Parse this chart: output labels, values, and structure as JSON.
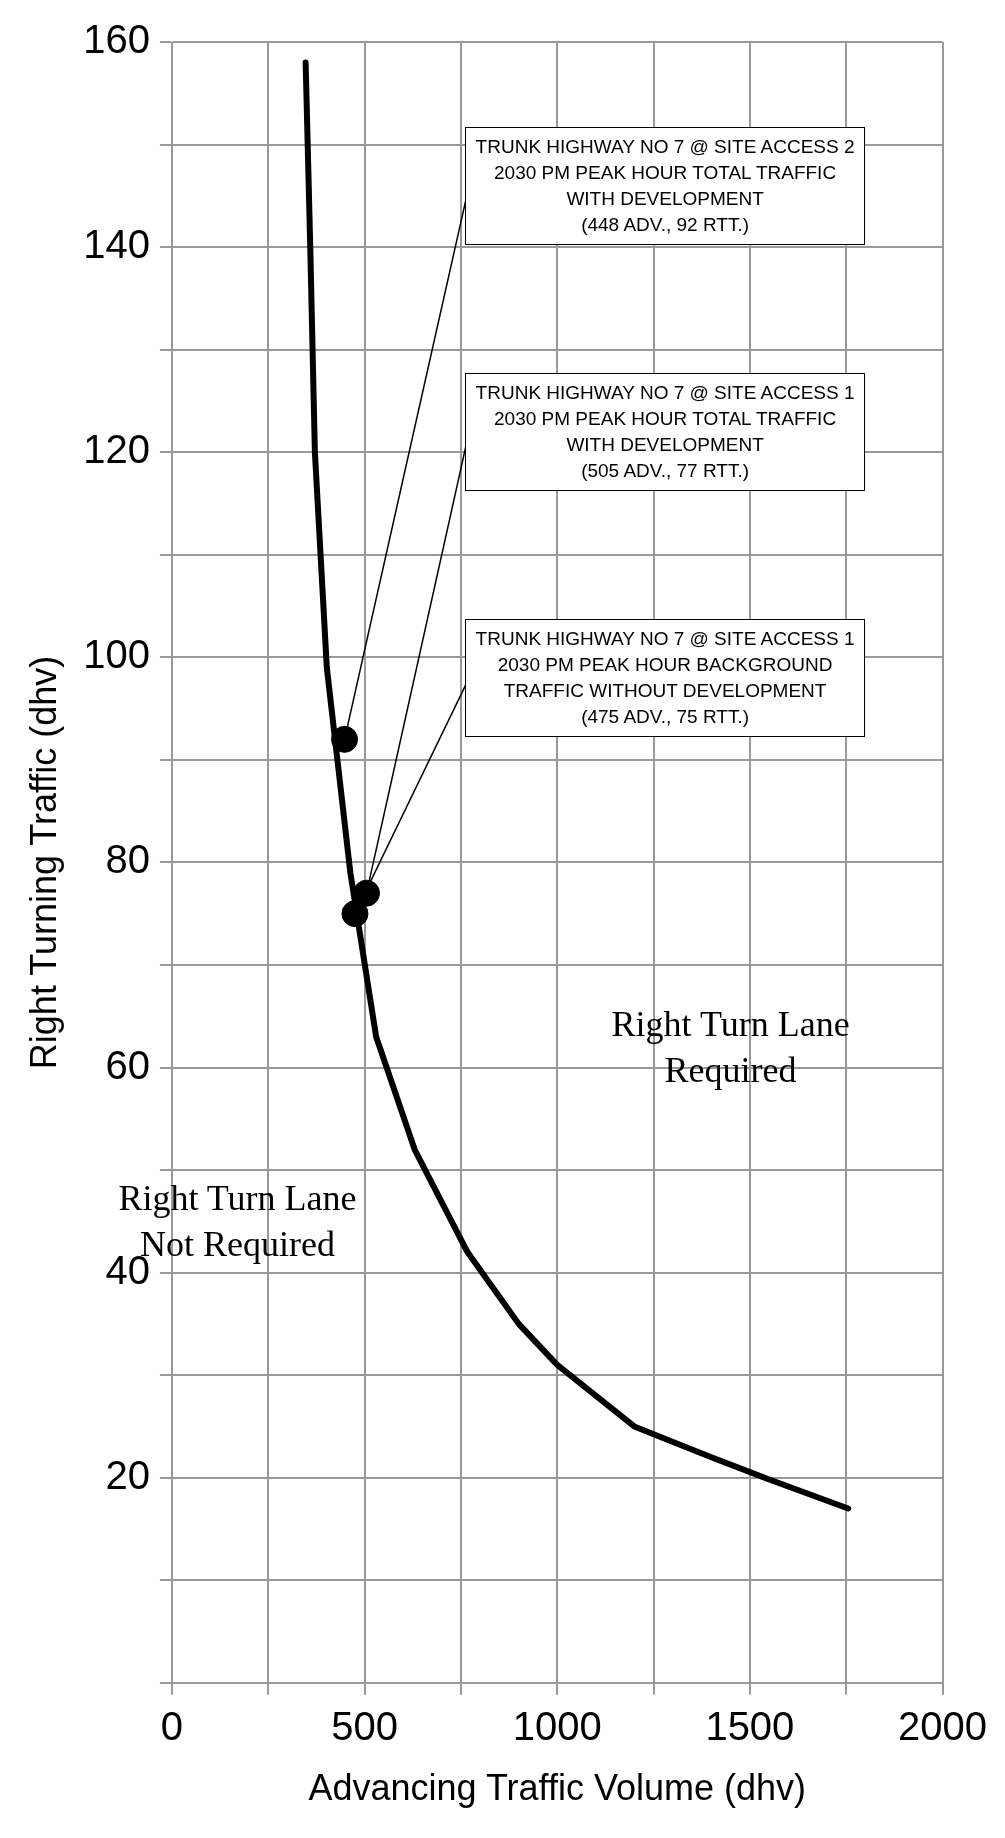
{
  "chart_data": {
    "type": "line",
    "xlabel": "Advancing Traffic Volume (dhv)",
    "ylabel": "Right Turning Traffic (dhv)",
    "xlim": [
      0,
      2000
    ],
    "ylim": [
      0,
      160
    ],
    "xticks": [
      0,
      {
        "value": 250,
        "label": null
      },
      500,
      {
        "value": 750,
        "label": null
      },
      1000,
      {
        "value": 1250,
        "label": null
      },
      1500,
      {
        "value": 1750,
        "label": null
      },
      2000
    ],
    "yticks": [
      {
        "value": 0,
        "label": null
      },
      {
        "value": 10,
        "label": null
      },
      20,
      {
        "value": 30,
        "label": null
      },
      40,
      {
        "value": 50,
        "label": null
      },
      60,
      {
        "value": 70,
        "label": null
      },
      80,
      {
        "value": 90,
        "label": null
      },
      100,
      {
        "value": 110,
        "label": null
      },
      120,
      {
        "value": 130,
        "label": null
      },
      140,
      {
        "value": 150,
        "label": null
      },
      160
    ],
    "grid": true,
    "series": [
      {
        "type": "line",
        "color": "#000000",
        "marker": "none",
        "line_style": "solid",
        "x": [
          347,
          359,
          371,
          402,
          463,
          530,
          630,
          767,
          900,
          1000,
          1200,
          1400,
          1538,
          1755
        ],
        "values": [
          158,
          140,
          120,
          99,
          79,
          63,
          52,
          42,
          35,
          31,
          25,
          22,
          20,
          17
        ]
      },
      {
        "type": "scatter",
        "color": "#000000",
        "marker": "circle",
        "x": [
          448,
          505,
          475
        ],
        "values": [
          92,
          77,
          75
        ]
      }
    ],
    "annotations": [
      {
        "text": "TRUNK HIGHWAY NO 7 @ SITE ACCESS 2\n2030 PM PEAK HOUR TOTAL TRAFFIC\nWITH DEVELOPMENT\n(448 ADV., 92 RTT.)",
        "x": 448,
        "y": 92
      },
      {
        "text": "TRUNK HIGHWAY NO 7 @ SITE ACCESS 1\n2030 PM PEAK HOUR TOTAL TRAFFIC\nWITH DEVELOPMENT\n(505 ADV., 77 RTT.)",
        "x": 505,
        "y": 77
      },
      {
        "text": "TRUNK HIGHWAY NO 7 @ SITE ACCESS 1\n2030 PM PEAK HOUR BACKGROUND\nTRAFFIC WITHOUT DEVELOPMENT\n(475 ADV., 75 RTT.)",
        "x": 475,
        "y": 75
      },
      "Right Turn Lane\nRequired",
      "Right Turn Lane\nNot Required"
    ]
  }
}
